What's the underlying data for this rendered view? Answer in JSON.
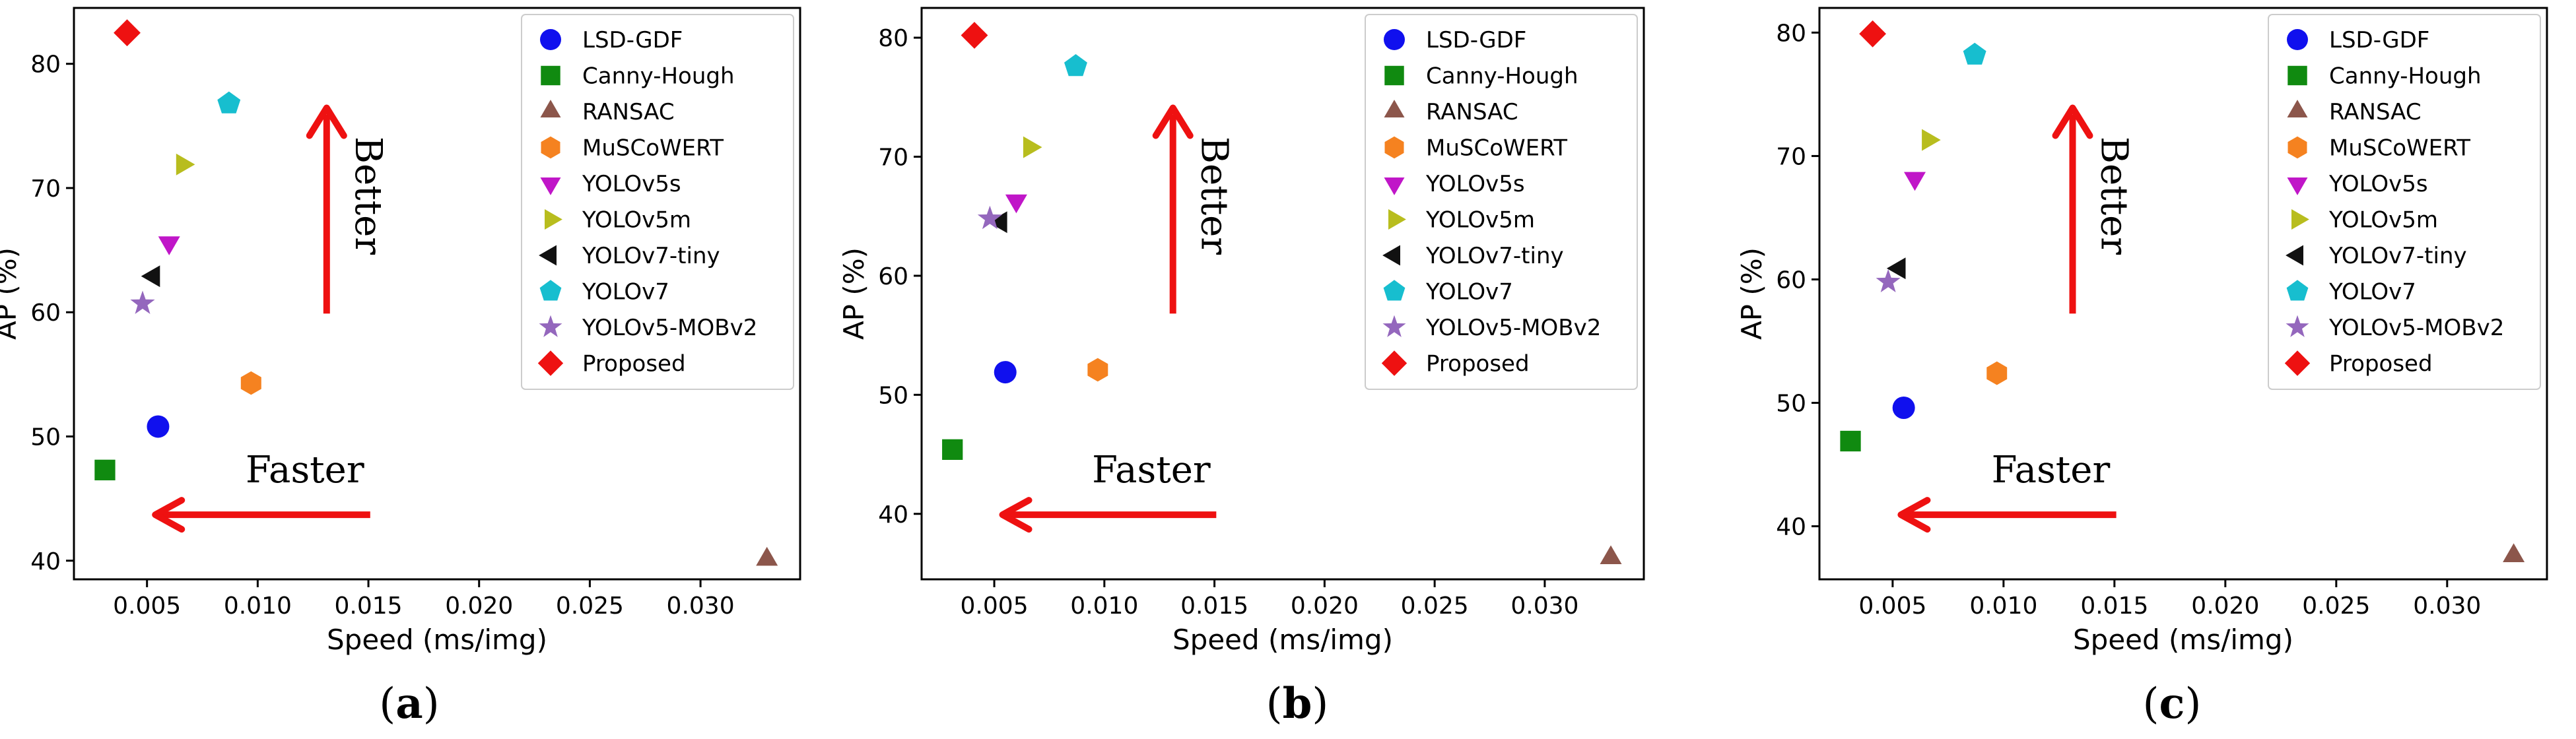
{
  "chart_data": [
    {
      "type": "scatter",
      "caption": "(a)",
      "caption_letter": "a",
      "xlabel": "Speed (ms/img)",
      "ylabel": "AP (%)",
      "xlim": [
        0.0017,
        0.0345
      ],
      "ylim": [
        38.5,
        84.5
      ],
      "xticks": [
        "0.005",
        "0.010",
        "0.015",
        "0.020",
        "0.025",
        "0.030"
      ],
      "yticks": [
        "40",
        "50",
        "60",
        "70",
        "80"
      ],
      "grid": false,
      "legend_position": "top-right",
      "annotations": [
        {
          "text": "Better",
          "arrow": "up"
        },
        {
          "text": "Faster",
          "arrow": "left"
        }
      ],
      "series": [
        {
          "name": "LSD-GDF",
          "x": 0.0055,
          "y": 50.8,
          "marker": "circle",
          "color": "#1010ee"
        },
        {
          "name": "Canny-Hough",
          "x": 0.0031,
          "y": 47.3,
          "marker": "square",
          "color": "#108a10"
        },
        {
          "name": "RANSAC",
          "x": 0.033,
          "y": 40.1,
          "marker": "triangle-up",
          "color": "#8c564b"
        },
        {
          "name": "MuSCoWERT",
          "x": 0.0097,
          "y": 54.3,
          "marker": "hexagon",
          "color": "#f58220"
        },
        {
          "name": "YOLOv5s",
          "x": 0.006,
          "y": 65.6,
          "marker": "triangle-down",
          "color": "#c016c8"
        },
        {
          "name": "YOLOv5m",
          "x": 0.0066,
          "y": 71.9,
          "marker": "triangle-right",
          "color": "#b8bd1e"
        },
        {
          "name": "YOLOv7-tiny",
          "x": 0.0053,
          "y": 62.9,
          "marker": "triangle-left",
          "color": "#111111"
        },
        {
          "name": "YOLOv7",
          "x": 0.0087,
          "y": 76.8,
          "marker": "pentagon",
          "color": "#17becf"
        },
        {
          "name": "YOLOv5-MOBv2",
          "x": 0.0048,
          "y": 60.7,
          "marker": "star",
          "color": "#9467bd"
        },
        {
          "name": "Proposed",
          "x": 0.0041,
          "y": 82.5,
          "marker": "diamond",
          "color": "#ee1111"
        }
      ]
    },
    {
      "type": "scatter",
      "caption": "(b)",
      "caption_letter": "b",
      "xlabel": "Speed (ms/img)",
      "ylabel": "AP (%)",
      "xlim": [
        0.0017,
        0.0345
      ],
      "ylim": [
        34.5,
        82.5
      ],
      "xticks": [
        "0.005",
        "0.010",
        "0.015",
        "0.020",
        "0.025",
        "0.030"
      ],
      "yticks": [
        "40",
        "50",
        "60",
        "70",
        "80"
      ],
      "grid": false,
      "legend_position": "top-right",
      "annotations": [
        {
          "text": "Better",
          "arrow": "up"
        },
        {
          "text": "Faster",
          "arrow": "left"
        }
      ],
      "series": [
        {
          "name": "LSD-GDF",
          "x": 0.0055,
          "y": 51.9,
          "marker": "circle",
          "color": "#1010ee"
        },
        {
          "name": "Canny-Hough",
          "x": 0.0031,
          "y": 45.4,
          "marker": "square",
          "color": "#108a10"
        },
        {
          "name": "RANSAC",
          "x": 0.033,
          "y": 36.3,
          "marker": "triangle-up",
          "color": "#8c564b"
        },
        {
          "name": "MuSCoWERT",
          "x": 0.0097,
          "y": 52.1,
          "marker": "hexagon",
          "color": "#f58220"
        },
        {
          "name": "YOLOv5s",
          "x": 0.006,
          "y": 66.3,
          "marker": "triangle-down",
          "color": "#c016c8"
        },
        {
          "name": "YOLOv5m",
          "x": 0.0066,
          "y": 70.8,
          "marker": "triangle-right",
          "color": "#b8bd1e"
        },
        {
          "name": "YOLOv7-tiny",
          "x": 0.0053,
          "y": 64.5,
          "marker": "triangle-left",
          "color": "#111111"
        },
        {
          "name": "YOLOv7",
          "x": 0.0087,
          "y": 77.6,
          "marker": "pentagon",
          "color": "#17becf"
        },
        {
          "name": "YOLOv5-MOBv2",
          "x": 0.0048,
          "y": 64.8,
          "marker": "star",
          "color": "#9467bd"
        },
        {
          "name": "Proposed",
          "x": 0.0041,
          "y": 80.2,
          "marker": "diamond",
          "color": "#ee1111"
        }
      ]
    },
    {
      "type": "scatter",
      "caption": "(c)",
      "caption_letter": "c",
      "xlabel": "Speed (ms/img)",
      "ylabel": "AP (%)",
      "xlim": [
        0.0017,
        0.0345
      ],
      "ylim": [
        35.7,
        82.0
      ],
      "xticks": [
        "0.005",
        "0.010",
        "0.015",
        "0.020",
        "0.025",
        "0.030"
      ],
      "yticks": [
        "40",
        "50",
        "60",
        "70",
        "80"
      ],
      "grid": false,
      "legend_position": "top-right",
      "annotations": [
        {
          "text": "Better",
          "arrow": "up"
        },
        {
          "text": "Faster",
          "arrow": "left"
        }
      ],
      "series": [
        {
          "name": "LSD-GDF",
          "x": 0.0055,
          "y": 49.6,
          "marker": "circle",
          "color": "#1010ee"
        },
        {
          "name": "Canny-Hough",
          "x": 0.0031,
          "y": 46.9,
          "marker": "square",
          "color": "#108a10"
        },
        {
          "name": "RANSAC",
          "x": 0.033,
          "y": 37.6,
          "marker": "triangle-up",
          "color": "#8c564b"
        },
        {
          "name": "MuSCoWERT",
          "x": 0.0097,
          "y": 52.4,
          "marker": "hexagon",
          "color": "#f58220"
        },
        {
          "name": "YOLOv5s",
          "x": 0.006,
          "y": 68.2,
          "marker": "triangle-down",
          "color": "#c016c8"
        },
        {
          "name": "YOLOv5m",
          "x": 0.0066,
          "y": 71.3,
          "marker": "triangle-right",
          "color": "#b8bd1e"
        },
        {
          "name": "YOLOv7-tiny",
          "x": 0.0053,
          "y": 60.9,
          "marker": "triangle-left",
          "color": "#111111"
        },
        {
          "name": "YOLOv7",
          "x": 0.0087,
          "y": 78.2,
          "marker": "pentagon",
          "color": "#17becf"
        },
        {
          "name": "YOLOv5-MOBv2",
          "x": 0.0048,
          "y": 59.8,
          "marker": "star",
          "color": "#9467bd"
        },
        {
          "name": "Proposed",
          "x": 0.0041,
          "y": 79.9,
          "marker": "diamond",
          "color": "#ee1111"
        }
      ]
    }
  ],
  "colors": {
    "arrow": "#ee1111",
    "axis": "#000000"
  }
}
